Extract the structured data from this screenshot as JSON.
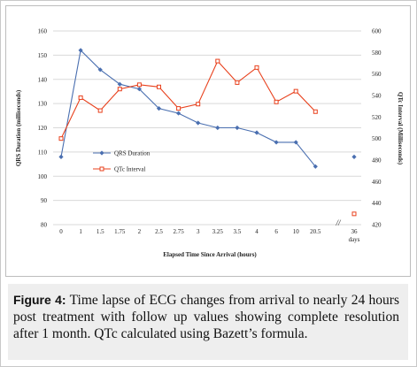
{
  "figure": {
    "caption_label": "Figure 4:",
    "caption_text": " Time lapse of ECG changes from arrival to nearly 24 hours post treatment with follow up values showing complete resolution after 1 month. QTc calculated using Bazett’s formula."
  },
  "chart_data": {
    "type": "line",
    "title": "",
    "xlabel": "Elapsed Time Since Arrival (hours)",
    "ylabel": "QRS Duration (milliseconds)",
    "y2label": "QTc Interval (Milliseconds)",
    "categories": [
      "0",
      "1",
      "1.5",
      "1.75",
      "2",
      "2.5",
      "2.75",
      "3",
      "3.25",
      "3.5",
      "4",
      "6",
      "10",
      "20.5"
    ],
    "break_marker": "//",
    "followup_label": [
      "36",
      "days"
    ],
    "ylim": [
      80,
      160
    ],
    "y_ticks": [
      80,
      90,
      100,
      110,
      120,
      130,
      140,
      150,
      160
    ],
    "y2lim": [
      420,
      600
    ],
    "y2_ticks": [
      420,
      440,
      460,
      480,
      500,
      520,
      540,
      560,
      580,
      600
    ],
    "grid": true,
    "legend_position": "center-left",
    "series": [
      {
        "name": "QRS Duration",
        "axis": "left",
        "color": "#4a6fb0",
        "marker": "star",
        "values": [
          108,
          152,
          144,
          138,
          136,
          128,
          126,
          122,
          120,
          120,
          118,
          114,
          114,
          104
        ],
        "followup_value": 108
      },
      {
        "name": "QTc Interval",
        "axis": "right",
        "color": "#e8401c",
        "marker": "square",
        "values": [
          500,
          538,
          526,
          546,
          550,
          548,
          528,
          532,
          572,
          552,
          566,
          534,
          544,
          525
        ],
        "followup_value": 430
      }
    ]
  }
}
